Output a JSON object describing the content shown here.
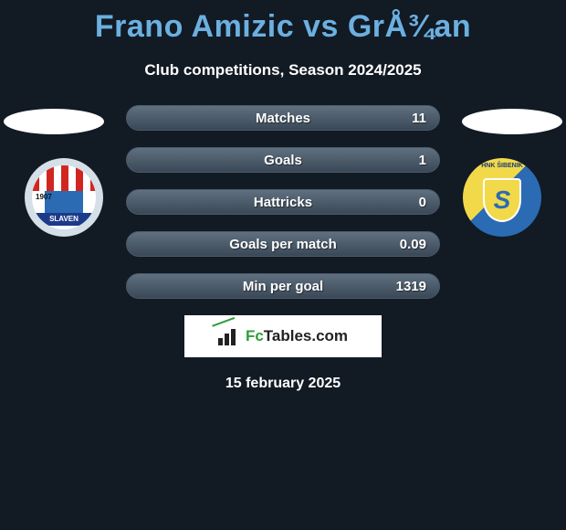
{
  "title": "Frano Amizic vs GrÅ¾an",
  "subtitle": "Club competitions, Season 2024/2025",
  "date": "15 february 2025",
  "logo": {
    "text_prefix": "Fc",
    "text_suffix": "Tables.com"
  },
  "left_badge": {
    "band_text": "SLAVEN",
    "year": "1907"
  },
  "right_badge": {
    "ring_text": "HNK ŠIBENIK",
    "letter": "S"
  },
  "colors": {
    "background": "#121a24",
    "title": "#6bb0e0",
    "bar_gradient_top": "#5f7080",
    "bar_gradient_bottom": "#3a4856",
    "bar_border": "#4a5a6a",
    "text": "#ffffff",
    "logo_green": "#2e9c3a",
    "logo_dark": "#222222"
  },
  "stats": [
    {
      "label": "Matches",
      "value": "11"
    },
    {
      "label": "Goals",
      "value": "1"
    },
    {
      "label": "Hattricks",
      "value": "0"
    },
    {
      "label": "Goals per match",
      "value": "0.09"
    },
    {
      "label": "Min per goal",
      "value": "1319"
    }
  ]
}
